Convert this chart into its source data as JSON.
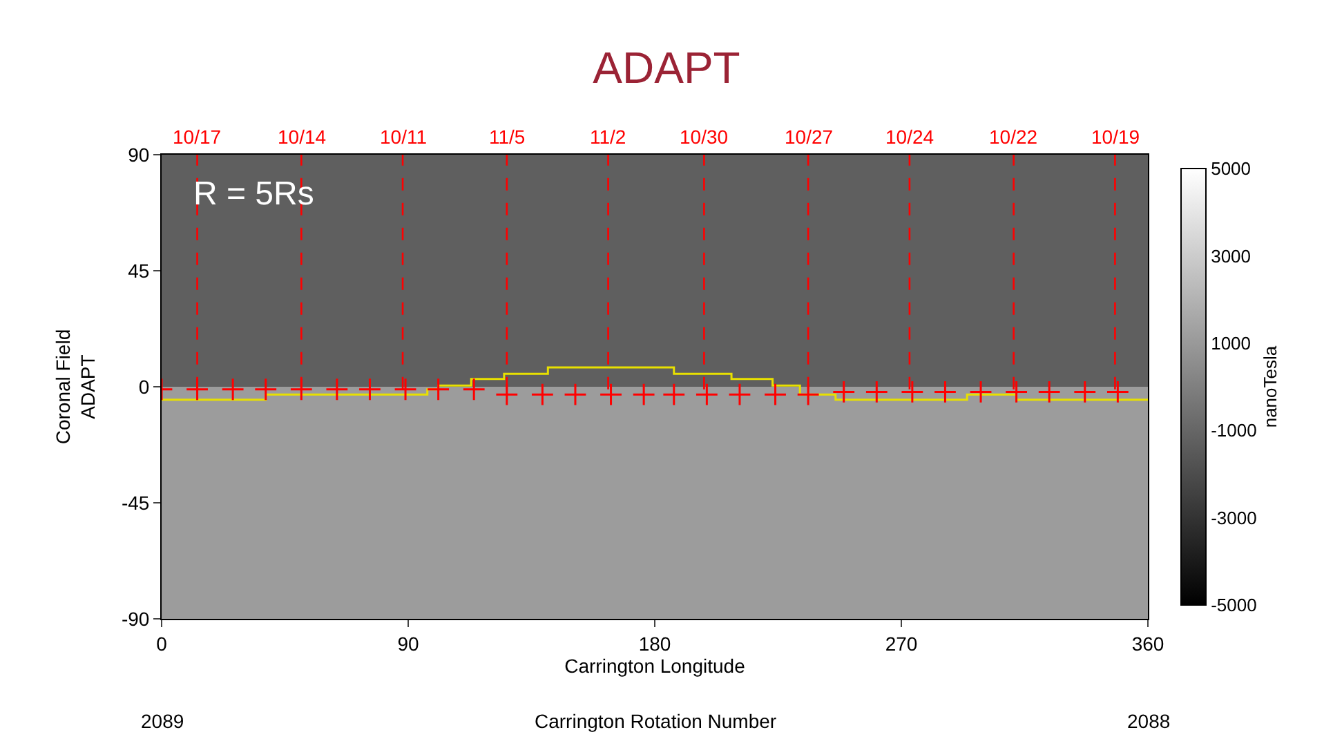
{
  "chart_data": {
    "type": "step",
    "title": "ADAPT",
    "xlabel": "Carrington Longitude",
    "ylabel": "Coronal Field\nADAPT",
    "clabel": "nanoTesla",
    "clim": [
      -5000,
      5000
    ],
    "cticks": [
      -5000,
      -3000,
      -1000,
      1000,
      3000,
      5000
    ],
    "xlim": [
      0,
      360
    ],
    "xticks": [
      0,
      90,
      180,
      270,
      360
    ],
    "ylim": [
      -90,
      90
    ],
    "yticks": [
      -90,
      -45,
      0,
      45,
      90
    ],
    "grid": false,
    "series": [
      {
        "color": "#e8e000",
        "x": [
          0,
          38,
          97,
          101,
          113,
          125,
          141,
          187,
          208,
          223,
          233,
          246,
          294,
          312,
          360
        ],
        "values": [
          -5,
          -3,
          -1,
          0.5,
          3,
          5,
          7.5,
          5,
          3,
          0.5,
          -3,
          -5,
          -3,
          -5,
          -5
        ]
      },
      {
        "type": "scatter",
        "marker": "cross",
        "color": "#ff0000",
        "x": [
          0,
          13,
          26,
          38,
          51,
          64,
          76,
          89,
          101,
          114,
          126,
          139,
          151,
          164,
          176,
          187,
          199,
          211,
          224,
          236,
          249,
          261,
          274,
          286,
          299,
          312,
          324,
          337,
          349
        ],
        "values": [
          -1,
          -1,
          -1,
          -1,
          -1,
          -1,
          -1,
          -1,
          -1,
          -1,
          -3,
          -3,
          -3,
          -3,
          -3,
          -3,
          -3,
          -3,
          -3,
          -3,
          -2,
          -2,
          -2,
          -2,
          -2,
          -2,
          -2,
          -2,
          -2
        ]
      }
    ],
    "bands": [
      {
        "axis": "y",
        "from": 0,
        "to": 90,
        "color": "#5f5f5f"
      },
      {
        "axis": "y",
        "from": -90,
        "to": 0,
        "color": "#9c9c9c"
      }
    ],
    "ref_lines": [
      {
        "axis": "x",
        "value": 13,
        "color": "#ff0000",
        "line_style": "dashed"
      },
      {
        "axis": "x",
        "value": 51,
        "color": "#ff0000",
        "line_style": "dashed"
      },
      {
        "axis": "x",
        "value": 88,
        "color": "#ff0000",
        "line_style": "dashed"
      },
      {
        "axis": "x",
        "value": 126,
        "color": "#ff0000",
        "line_style": "dashed"
      },
      {
        "axis": "x",
        "value": 163,
        "color": "#ff0000",
        "line_style": "dashed"
      },
      {
        "axis": "x",
        "value": 198,
        "color": "#ff0000",
        "line_style": "dashed"
      },
      {
        "axis": "x",
        "value": 236,
        "color": "#ff0000",
        "line_style": "dashed"
      },
      {
        "axis": "x",
        "value": 273,
        "color": "#ff0000",
        "line_style": "dashed"
      },
      {
        "axis": "x",
        "value": 311,
        "color": "#ff0000",
        "line_style": "dashed"
      },
      {
        "axis": "x",
        "value": 348,
        "color": "#ff0000",
        "line_style": "dashed"
      }
    ],
    "annotations": [
      "R = 5Rs",
      {
        "text": "10/17",
        "x": 13,
        "y": 90
      },
      {
        "text": "10/14",
        "x": 51,
        "y": 90
      },
      {
        "text": "10/11",
        "x": 88,
        "y": 90
      },
      {
        "text": "11/5",
        "x": 126,
        "y": 90
      },
      {
        "text": "11/2",
        "x": 163,
        "y": 90
      },
      {
        "text": "10/30",
        "x": 198,
        "y": 90
      },
      {
        "text": "10/27",
        "x": 236,
        "y": 90
      },
      {
        "text": "10/24",
        "x": 273,
        "y": 90
      },
      {
        "text": "10/22",
        "x": 311,
        "y": 90
      },
      {
        "text": "10/19",
        "x": 348,
        "y": 90
      },
      "Carrington Rotation Number",
      "2089",
      "2088"
    ]
  }
}
